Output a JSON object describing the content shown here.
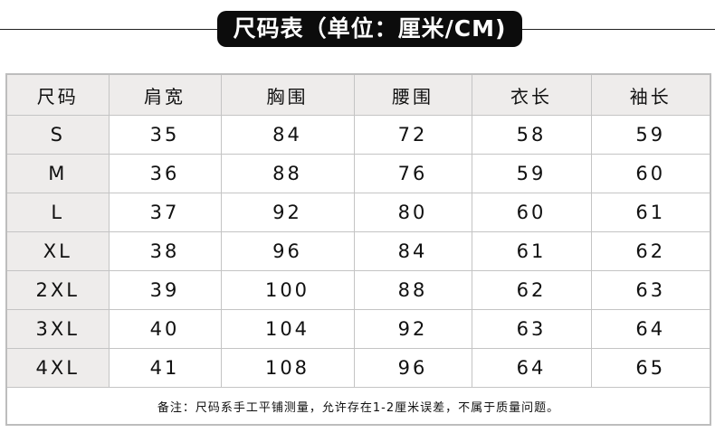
{
  "title": "尺码表（单位：厘米/CM)",
  "table": {
    "headers": [
      "尺码",
      "肩宽",
      "胸围",
      "腰围",
      "衣长",
      "袖长"
    ],
    "rows": [
      [
        "S",
        "35",
        "84",
        "72",
        "58",
        "59"
      ],
      [
        "M",
        "36",
        "88",
        "76",
        "59",
        "60"
      ],
      [
        "L",
        "37",
        "92",
        "80",
        "60",
        "61"
      ],
      [
        "XL",
        "38",
        "96",
        "84",
        "61",
        "62"
      ],
      [
        "2XL",
        "39",
        "100",
        "88",
        "62",
        "63"
      ],
      [
        "3XL",
        "40",
        "104",
        "92",
        "63",
        "64"
      ],
      [
        "4XL",
        "41",
        "108",
        "96",
        "64",
        "65"
      ]
    ]
  },
  "note": "备注：尺码系手工平铺测量，允许存在1-2厘米误差，不属于质量问题。"
}
